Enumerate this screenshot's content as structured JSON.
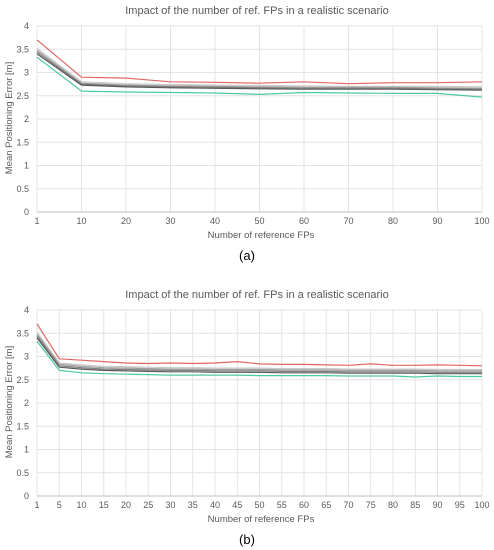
{
  "chart_data": [
    {
      "type": "line",
      "title": "Impact of the number of ref. FPs in a realistic scenario",
      "xlabel": "Number of reference FPs",
      "ylabel": "Mean Positioning Error [m]",
      "caption": "(a)",
      "x": [
        1,
        10,
        20,
        30,
        40,
        50,
        60,
        70,
        80,
        90,
        100
      ],
      "xticks": [
        "1",
        "10",
        "20",
        "30",
        "40",
        "50",
        "60",
        "70",
        "80",
        "90",
        "100"
      ],
      "yticks": [
        "0",
        "0.5",
        "1",
        "1.5",
        "2",
        "2.5",
        "3",
        "3.5",
        "4"
      ],
      "ylim": [
        0,
        4
      ],
      "grid": true,
      "series": [
        {
          "color": "#e06666",
          "values": [
            3.7,
            2.9,
            2.88,
            2.8,
            2.79,
            2.77,
            2.8,
            2.76,
            2.78,
            2.78,
            2.8
          ]
        },
        {
          "color": "#c8c8c8",
          "values": [
            3.52,
            2.8,
            2.76,
            2.74,
            2.73,
            2.72,
            2.71,
            2.7,
            2.7,
            2.7,
            2.69
          ]
        },
        {
          "color": "#a0a0a0",
          "values": [
            3.48,
            2.77,
            2.73,
            2.71,
            2.7,
            2.69,
            2.68,
            2.68,
            2.68,
            2.67,
            2.66
          ]
        },
        {
          "color": "#7f7f7f",
          "values": [
            3.44,
            2.75,
            2.71,
            2.69,
            2.68,
            2.67,
            2.66,
            2.66,
            2.66,
            2.65,
            2.64
          ]
        },
        {
          "color": "#5a5a5a",
          "values": [
            3.4,
            2.73,
            2.69,
            2.67,
            2.66,
            2.65,
            2.64,
            2.64,
            2.64,
            2.63,
            2.62
          ]
        },
        {
          "color": "#4ecb9a",
          "values": [
            3.33,
            2.6,
            2.58,
            2.57,
            2.56,
            2.53,
            2.57,
            2.56,
            2.55,
            2.55,
            2.47
          ]
        }
      ]
    },
    {
      "type": "line",
      "title": "Impact of the number of ref. FPs in a realistic scenario",
      "xlabel": "Number of reference FPs",
      "ylabel": "Mean Positioning Error [m]",
      "caption": "(b)",
      "x": [
        1,
        5,
        10,
        15,
        20,
        25,
        30,
        35,
        40,
        45,
        50,
        55,
        60,
        65,
        70,
        75,
        80,
        85,
        90,
        95,
        100
      ],
      "xticks": [
        "1",
        "5",
        "10",
        "15",
        "20",
        "25",
        "30",
        "35",
        "40",
        "45",
        "50",
        "55",
        "60",
        "65",
        "70",
        "75",
        "80",
        "85",
        "90",
        "95",
        "100"
      ],
      "yticks": [
        "0",
        "0.5",
        "1",
        "1.5",
        "2",
        "2.5",
        "3",
        "3.5",
        "4"
      ],
      "ylim": [
        0,
        4
      ],
      "grid": true,
      "series": [
        {
          "color": "#e06666",
          "values": [
            3.7,
            2.95,
            2.92,
            2.89,
            2.86,
            2.85,
            2.86,
            2.85,
            2.86,
            2.89,
            2.84,
            2.83,
            2.83,
            2.82,
            2.81,
            2.84,
            2.81,
            2.81,
            2.82,
            2.81,
            2.8
          ]
        },
        {
          "color": "#c8c8c8",
          "values": [
            3.52,
            2.86,
            2.82,
            2.79,
            2.78,
            2.77,
            2.76,
            2.76,
            2.75,
            2.75,
            2.75,
            2.74,
            2.74,
            2.74,
            2.73,
            2.73,
            2.73,
            2.73,
            2.72,
            2.72,
            2.72
          ]
        },
        {
          "color": "#a0a0a0",
          "values": [
            3.48,
            2.83,
            2.79,
            2.76,
            2.75,
            2.74,
            2.73,
            2.73,
            2.72,
            2.72,
            2.72,
            2.71,
            2.71,
            2.71,
            2.7,
            2.7,
            2.7,
            2.7,
            2.69,
            2.69,
            2.69
          ]
        },
        {
          "color": "#7f7f7f",
          "values": [
            3.44,
            2.8,
            2.76,
            2.73,
            2.72,
            2.71,
            2.7,
            2.7,
            2.69,
            2.69,
            2.69,
            2.68,
            2.68,
            2.68,
            2.67,
            2.67,
            2.67,
            2.67,
            2.66,
            2.66,
            2.66
          ]
        },
        {
          "color": "#5a5a5a",
          "values": [
            3.4,
            2.77,
            2.73,
            2.7,
            2.69,
            2.68,
            2.67,
            2.67,
            2.66,
            2.66,
            2.66,
            2.65,
            2.65,
            2.65,
            2.64,
            2.64,
            2.64,
            2.64,
            2.63,
            2.63,
            2.63
          ]
        },
        {
          "color": "#4ecb9a",
          "values": [
            3.33,
            2.7,
            2.65,
            2.63,
            2.62,
            2.61,
            2.6,
            2.6,
            2.6,
            2.6,
            2.59,
            2.59,
            2.59,
            2.59,
            2.58,
            2.58,
            2.58,
            2.56,
            2.58,
            2.57,
            2.57
          ]
        }
      ]
    }
  ]
}
